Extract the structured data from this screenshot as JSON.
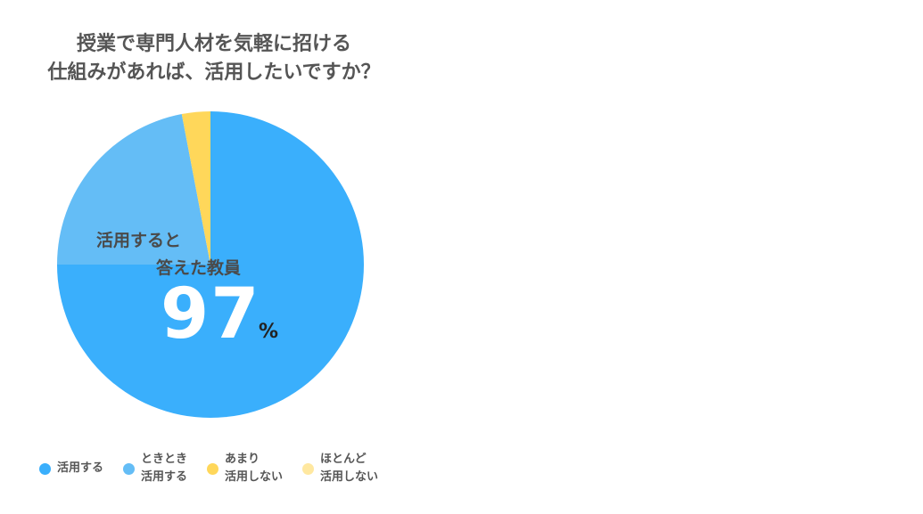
{
  "chart_data": {
    "type": "pie",
    "title": "授業で専門人材を気軽に招ける\n仕組みがあれば、活用したいですか？",
    "categories": [
      "活用する",
      "ときとき\n活用する",
      "あまり\n活用しない",
      "ほとんど\n活用しない"
    ],
    "values": [
      75,
      22,
      3,
      0
    ],
    "colors": [
      "#3AAFFC",
      "#64BDF6",
      "#FFD75A",
      "#FFE8A0"
    ],
    "legend_position": "bottom",
    "annotation": {
      "line1": "活用すると",
      "line2": "答えた教員",
      "value": "97",
      "unit": "%"
    }
  }
}
